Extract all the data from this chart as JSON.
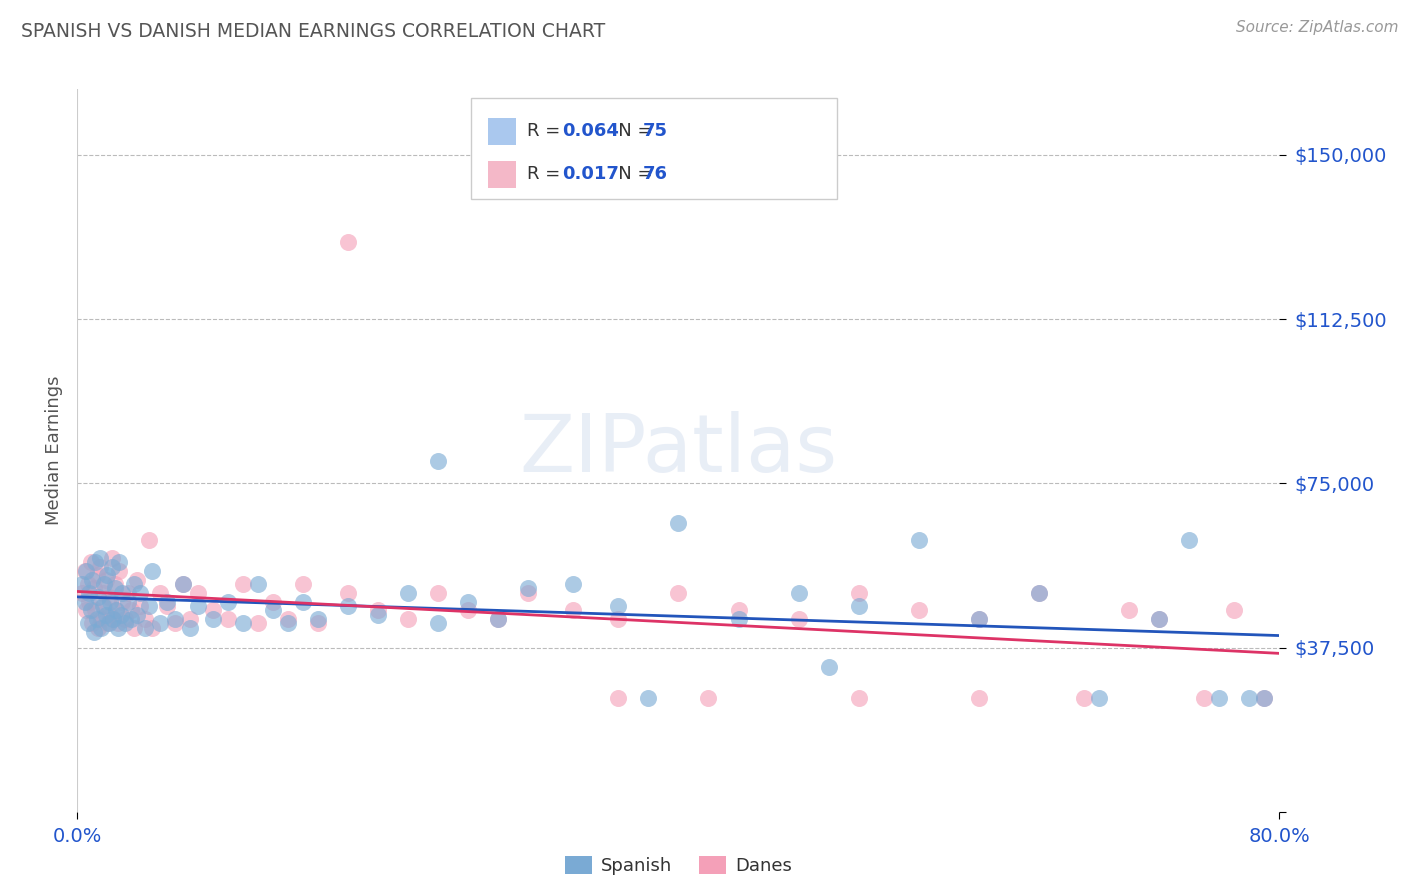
{
  "title": "SPANISH VS DANISH MEDIAN EARNINGS CORRELATION CHART",
  "source": "Source: ZipAtlas.com",
  "ylabel": "Median Earnings",
  "yticks": [
    0,
    37500,
    75000,
    112500,
    150000
  ],
  "ytick_labels": [
    "",
    "$37,500",
    "$75,000",
    "$112,500",
    "$150,000"
  ],
  "xmin": 0.0,
  "xmax": 0.8,
  "ymin": 5000,
  "ymax": 165000,
  "legend_label1": "Spanish",
  "legend_label2": "Danes",
  "blue_color": "#7aaad4",
  "pink_color": "#f4a0b8",
  "line_blue": "#2255bb",
  "line_pink": "#dd3366",
  "legend_blue_fill": "#aac8ee",
  "legend_pink_fill": "#f4b8c8",
  "R1": "0.064",
  "N1": "75",
  "R2": "0.017",
  "N2": "76",
  "axis_label_color": "#2255cc",
  "title_color": "#555555",
  "source_color": "#999999",
  "spanish_x": [
    0.003,
    0.005,
    0.006,
    0.007,
    0.008,
    0.009,
    0.01,
    0.011,
    0.012,
    0.013,
    0.014,
    0.015,
    0.016,
    0.017,
    0.018,
    0.019,
    0.02,
    0.021,
    0.022,
    0.023,
    0.024,
    0.025,
    0.026,
    0.027,
    0.028,
    0.029,
    0.03,
    0.032,
    0.034,
    0.036,
    0.038,
    0.04,
    0.042,
    0.045,
    0.048,
    0.05,
    0.055,
    0.06,
    0.065,
    0.07,
    0.075,
    0.08,
    0.09,
    0.1,
    0.11,
    0.12,
    0.13,
    0.14,
    0.15,
    0.16,
    0.18,
    0.2,
    0.22,
    0.24,
    0.26,
    0.28,
    0.3,
    0.33,
    0.36,
    0.4,
    0.44,
    0.48,
    0.52,
    0.56,
    0.6,
    0.64,
    0.68,
    0.72,
    0.74,
    0.76,
    0.78,
    0.79,
    0.24,
    0.38,
    0.5
  ],
  "spanish_y": [
    52000,
    48000,
    55000,
    43000,
    50000,
    46000,
    53000,
    41000,
    57000,
    44000,
    49000,
    58000,
    42000,
    47000,
    52000,
    45000,
    54000,
    43000,
    48000,
    56000,
    44000,
    51000,
    46000,
    42000,
    57000,
    45000,
    50000,
    43000,
    48000,
    44000,
    52000,
    45000,
    50000,
    42000,
    47000,
    55000,
    43000,
    48000,
    44000,
    52000,
    42000,
    47000,
    44000,
    48000,
    43000,
    52000,
    46000,
    43000,
    48000,
    44000,
    47000,
    45000,
    50000,
    43000,
    48000,
    44000,
    51000,
    52000,
    47000,
    66000,
    44000,
    50000,
    47000,
    62000,
    44000,
    50000,
    26000,
    44000,
    62000,
    26000,
    26000,
    26000,
    80000,
    26000,
    33000
  ],
  "danes_x": [
    0.003,
    0.005,
    0.006,
    0.007,
    0.008,
    0.009,
    0.01,
    0.011,
    0.012,
    0.013,
    0.014,
    0.015,
    0.016,
    0.017,
    0.018,
    0.019,
    0.02,
    0.021,
    0.022,
    0.023,
    0.024,
    0.025,
    0.026,
    0.027,
    0.028,
    0.03,
    0.032,
    0.034,
    0.036,
    0.038,
    0.04,
    0.042,
    0.045,
    0.048,
    0.05,
    0.055,
    0.06,
    0.065,
    0.07,
    0.075,
    0.08,
    0.09,
    0.1,
    0.11,
    0.12,
    0.13,
    0.14,
    0.15,
    0.16,
    0.18,
    0.2,
    0.22,
    0.24,
    0.26,
    0.28,
    0.3,
    0.33,
    0.36,
    0.4,
    0.44,
    0.48,
    0.52,
    0.56,
    0.6,
    0.64,
    0.67,
    0.7,
    0.72,
    0.75,
    0.77,
    0.79,
    0.18,
    0.36,
    0.42,
    0.52,
    0.6
  ],
  "danes_y": [
    50000,
    55000,
    46000,
    52000,
    48000,
    57000,
    43000,
    51000,
    46000,
    54000,
    42000,
    56000,
    44000,
    50000,
    47000,
    53000,
    43000,
    49000,
    45000,
    58000,
    44000,
    52000,
    46000,
    43000,
    55000,
    48000,
    44000,
    50000,
    46000,
    42000,
    53000,
    47000,
    44000,
    62000,
    42000,
    50000,
    47000,
    43000,
    52000,
    44000,
    50000,
    46000,
    44000,
    52000,
    43000,
    48000,
    44000,
    52000,
    43000,
    50000,
    46000,
    44000,
    50000,
    46000,
    44000,
    50000,
    46000,
    44000,
    50000,
    46000,
    44000,
    50000,
    46000,
    44000,
    50000,
    26000,
    46000,
    44000,
    26000,
    46000,
    26000,
    130000,
    26000,
    26000,
    26000,
    26000
  ]
}
